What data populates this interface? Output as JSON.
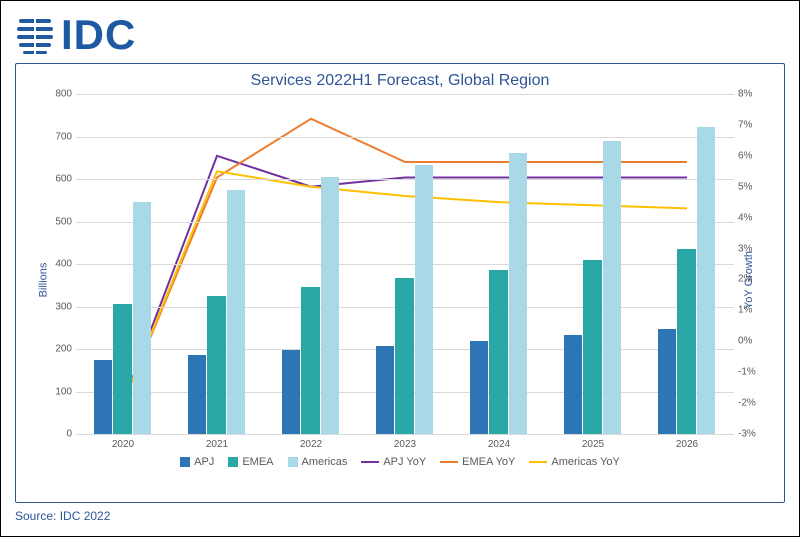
{
  "logo": {
    "text": "IDC",
    "color": "#1d5aa3"
  },
  "chart": {
    "type": "combo-bar-line",
    "title": "Services 2022H1 Forecast, Global Region",
    "title_color": "#2f5597",
    "title_fontsize": 16,
    "panel_border_color": "#2f5597",
    "grid_color": "#d9d9d9",
    "background_color": "#ffffff",
    "tick_color": "#595959",
    "categories": [
      "2020",
      "2021",
      "2022",
      "2023",
      "2024",
      "2025",
      "2026"
    ],
    "y_left": {
      "label": "Billions",
      "label_color": "#2f5597",
      "min": 0,
      "max": 800,
      "step": 100
    },
    "y_right": {
      "label": "YoY Growth",
      "label_color": "#2f5597",
      "min": -3,
      "max": 8,
      "step": 1,
      "suffix": "%"
    },
    "bar_series": [
      {
        "name": "APJ",
        "color": "#2e75b6",
        "values": [
          175,
          185,
          197,
          208,
          220,
          232,
          247
        ]
      },
      {
        "name": "EMEA",
        "color": "#2aa7a7",
        "values": [
          305,
          325,
          346,
          366,
          387,
          410,
          435
        ]
      },
      {
        "name": "Americas",
        "color": "#a9d8e7",
        "values": [
          545,
          575,
          604,
          632,
          661,
          690,
          722
        ]
      }
    ],
    "line_series": [
      {
        "name": "APJ YoY",
        "color": "#7030a0",
        "values": [
          -2.0,
          6.0,
          5.0,
          5.3,
          5.3,
          5.3,
          5.3
        ]
      },
      {
        "name": "EMEA YoY",
        "color": "#ed7d31",
        "values": [
          -2.0,
          5.3,
          7.2,
          5.8,
          5.8,
          5.8,
          5.8
        ]
      },
      {
        "name": "Americas YoY",
        "color": "#ffc000",
        "values": [
          -2.0,
          5.5,
          5.0,
          4.7,
          4.5,
          4.4,
          4.3
        ]
      }
    ],
    "bar_group_width": 0.62,
    "line_width": 2
  },
  "legend": {
    "items": [
      {
        "label": "APJ",
        "type": "box",
        "color": "#2e75b6"
      },
      {
        "label": "EMEA",
        "type": "box",
        "color": "#2aa7a7"
      },
      {
        "label": "Americas",
        "type": "box",
        "color": "#a9d8e7"
      },
      {
        "label": "APJ YoY",
        "type": "line",
        "color": "#7030a0"
      },
      {
        "label": "EMEA YoY",
        "type": "line",
        "color": "#ed7d31"
      },
      {
        "label": "Americas YoY",
        "type": "line",
        "color": "#ffc000"
      }
    ]
  },
  "source": {
    "text": "Source: IDC 2022",
    "color": "#2f5597"
  }
}
